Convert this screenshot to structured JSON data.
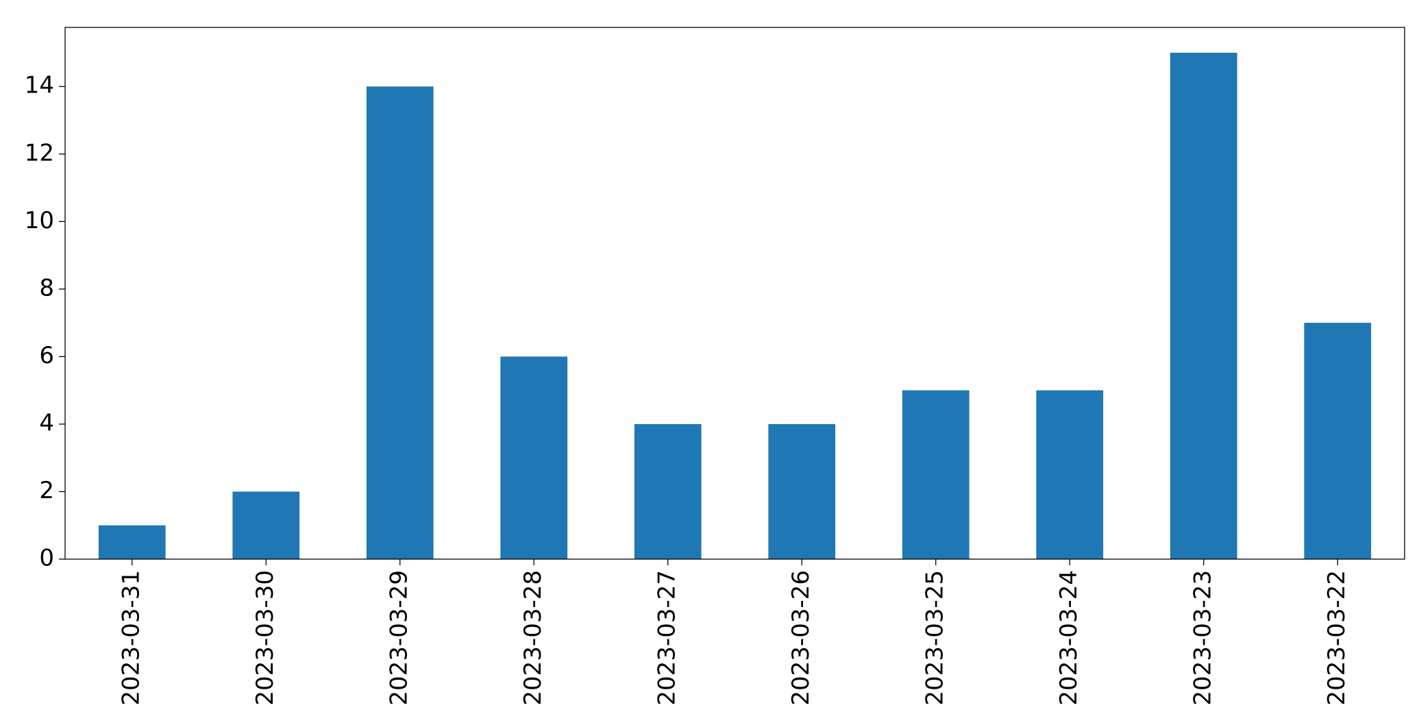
{
  "chart_data": {
    "type": "bar",
    "categories": [
      "2023-03-31",
      "2023-03-30",
      "2023-03-29",
      "2023-03-28",
      "2023-03-27",
      "2023-03-26",
      "2023-03-25",
      "2023-03-24",
      "2023-03-23",
      "2023-03-22"
    ],
    "values": [
      1,
      2,
      14,
      6,
      4,
      4,
      5,
      5,
      15,
      7
    ],
    "color": "#1f77b4",
    "ylim": [
      0,
      15.75
    ],
    "yticks": [
      0,
      2,
      4,
      6,
      8,
      10,
      12,
      14
    ],
    "grid": false
  }
}
